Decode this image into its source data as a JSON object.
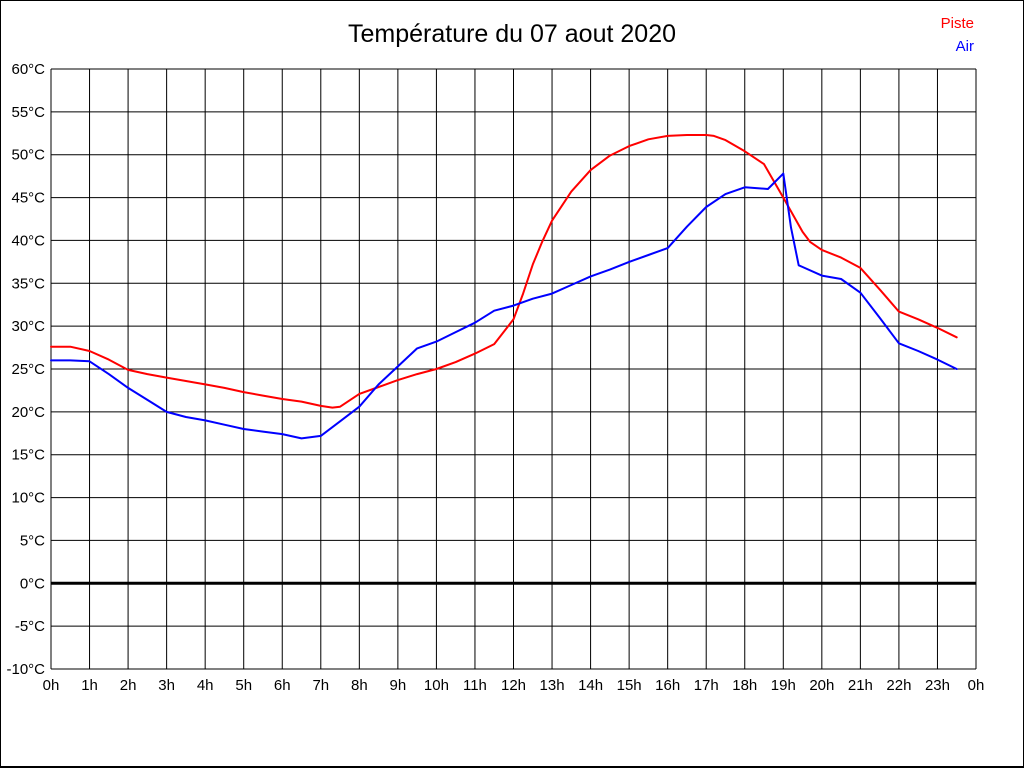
{
  "chart_data": {
    "type": "line",
    "title": "Température du 07 aout 2020",
    "xlabel": "",
    "ylabel": "",
    "grid": true,
    "ylim": [
      -10,
      60
    ],
    "xlim_hours": [
      0,
      24
    ],
    "zero_line_value": 0,
    "legend": {
      "position": "top-right",
      "items": [
        {
          "label": "Piste",
          "color": "#ff0000"
        },
        {
          "label": "Air",
          "color": "#0000ff"
        }
      ]
    },
    "y_ticks": [
      {
        "v": 60,
        "label": "60°C"
      },
      {
        "v": 55,
        "label": "55°C"
      },
      {
        "v": 50,
        "label": "50°C"
      },
      {
        "v": 45,
        "label": "45°C"
      },
      {
        "v": 40,
        "label": "40°C"
      },
      {
        "v": 35,
        "label": "35°C"
      },
      {
        "v": 30,
        "label": "30°C"
      },
      {
        "v": 25,
        "label": "25°C"
      },
      {
        "v": 20,
        "label": "20°C"
      },
      {
        "v": 15,
        "label": "15°C"
      },
      {
        "v": 10,
        "label": "10°C"
      },
      {
        "v": 5,
        "label": "5°C"
      },
      {
        "v": 0,
        "label": "0°C"
      },
      {
        "v": -5,
        "label": "-5°C"
      },
      {
        "v": -10,
        "label": "-10°C"
      }
    ],
    "x_ticks": [
      {
        "h": 0,
        "label": "0h"
      },
      {
        "h": 1,
        "label": "1h"
      },
      {
        "h": 2,
        "label": "2h"
      },
      {
        "h": 3,
        "label": "3h"
      },
      {
        "h": 4,
        "label": "4h"
      },
      {
        "h": 5,
        "label": "5h"
      },
      {
        "h": 6,
        "label": "6h"
      },
      {
        "h": 7,
        "label": "7h"
      },
      {
        "h": 8,
        "label": "8h"
      },
      {
        "h": 9,
        "label": "9h"
      },
      {
        "h": 10,
        "label": "10h"
      },
      {
        "h": 11,
        "label": "11h"
      },
      {
        "h": 12,
        "label": "12h"
      },
      {
        "h": 13,
        "label": "13h"
      },
      {
        "h": 14,
        "label": "14h"
      },
      {
        "h": 15,
        "label": "15h"
      },
      {
        "h": 16,
        "label": "16h"
      },
      {
        "h": 17,
        "label": "17h"
      },
      {
        "h": 18,
        "label": "18h"
      },
      {
        "h": 19,
        "label": "19h"
      },
      {
        "h": 20,
        "label": "20h"
      },
      {
        "h": 21,
        "label": "21h"
      },
      {
        "h": 22,
        "label": "22h"
      },
      {
        "h": 23,
        "label": "23h"
      },
      {
        "h": 24,
        "label": "0h"
      }
    ],
    "series": [
      {
        "name": "Piste",
        "color": "#ff0000",
        "points": [
          [
            0,
            27.6
          ],
          [
            0.5,
            27.6
          ],
          [
            1,
            27.1
          ],
          [
            1.5,
            26.1
          ],
          [
            2,
            24.9
          ],
          [
            2.5,
            24.4
          ],
          [
            3,
            24
          ],
          [
            3.5,
            23.6
          ],
          [
            4,
            23.2
          ],
          [
            4.5,
            22.8
          ],
          [
            5,
            22.3
          ],
          [
            5.5,
            21.9
          ],
          [
            6,
            21.5
          ],
          [
            6.5,
            21.2
          ],
          [
            7,
            20.7
          ],
          [
            7.3,
            20.5
          ],
          [
            7.5,
            20.6
          ],
          [
            8,
            22.1
          ],
          [
            8.5,
            22.9
          ],
          [
            9,
            23.7
          ],
          [
            9.5,
            24.4
          ],
          [
            10,
            25
          ],
          [
            10.5,
            25.8
          ],
          [
            11,
            26.8
          ],
          [
            11.5,
            27.9
          ],
          [
            12,
            30.8
          ],
          [
            12.25,
            33.8
          ],
          [
            12.5,
            37.2
          ],
          [
            12.75,
            39.9
          ],
          [
            13,
            42.3
          ],
          [
            13.5,
            45.7
          ],
          [
            14,
            48.2
          ],
          [
            14.5,
            49.9
          ],
          [
            15,
            51
          ],
          [
            15.5,
            51.8
          ],
          [
            16,
            52.2
          ],
          [
            16.5,
            52.3
          ],
          [
            17,
            52.3
          ],
          [
            17.2,
            52.2
          ],
          [
            17.5,
            51.7
          ],
          [
            18,
            50.4
          ],
          [
            18.5,
            48.9
          ],
          [
            19,
            45
          ],
          [
            19.5,
            41
          ],
          [
            19.7,
            39.8
          ],
          [
            20,
            38.9
          ],
          [
            20.5,
            38
          ],
          [
            21,
            36.8
          ],
          [
            21.5,
            34.3
          ],
          [
            22,
            31.7
          ],
          [
            22.5,
            30.8
          ],
          [
            23,
            29.8
          ],
          [
            23.5,
            28.7
          ]
        ]
      },
      {
        "name": "Air",
        "color": "#0000ff",
        "points": [
          [
            0,
            26
          ],
          [
            0.5,
            26
          ],
          [
            1,
            25.9
          ],
          [
            1.5,
            24.4
          ],
          [
            2,
            22.8
          ],
          [
            2.5,
            21.4
          ],
          [
            3,
            20
          ],
          [
            3.5,
            19.4
          ],
          [
            4,
            19
          ],
          [
            4.5,
            18.5
          ],
          [
            5,
            18
          ],
          [
            5.5,
            17.7
          ],
          [
            6,
            17.4
          ],
          [
            6.5,
            16.9
          ],
          [
            7,
            17.2
          ],
          [
            7.5,
            18.9
          ],
          [
            8,
            20.6
          ],
          [
            8.5,
            23.2
          ],
          [
            9,
            25.3
          ],
          [
            9.5,
            27.4
          ],
          [
            10,
            28.2
          ],
          [
            10.5,
            29.3
          ],
          [
            11,
            30.4
          ],
          [
            11.5,
            31.8
          ],
          [
            12,
            32.4
          ],
          [
            12.5,
            33.2
          ],
          [
            13,
            33.8
          ],
          [
            13.5,
            34.8
          ],
          [
            14,
            35.8
          ],
          [
            14.5,
            36.6
          ],
          [
            15,
            37.5
          ],
          [
            15.5,
            38.3
          ],
          [
            16,
            39.1
          ],
          [
            16.5,
            41.6
          ],
          [
            17,
            43.9
          ],
          [
            17.5,
            45.4
          ],
          [
            18,
            46.2
          ],
          [
            18.3,
            46.1
          ],
          [
            18.6,
            46
          ],
          [
            19,
            47.8
          ],
          [
            19.2,
            41.5
          ],
          [
            19.4,
            37.1
          ],
          [
            19.5,
            36.9
          ],
          [
            20,
            35.9
          ],
          [
            20.5,
            35.5
          ],
          [
            21,
            33.9
          ],
          [
            21.5,
            31
          ],
          [
            22,
            28
          ],
          [
            22.5,
            27.1
          ],
          [
            23,
            26.1
          ],
          [
            23.5,
            25
          ]
        ]
      }
    ]
  }
}
